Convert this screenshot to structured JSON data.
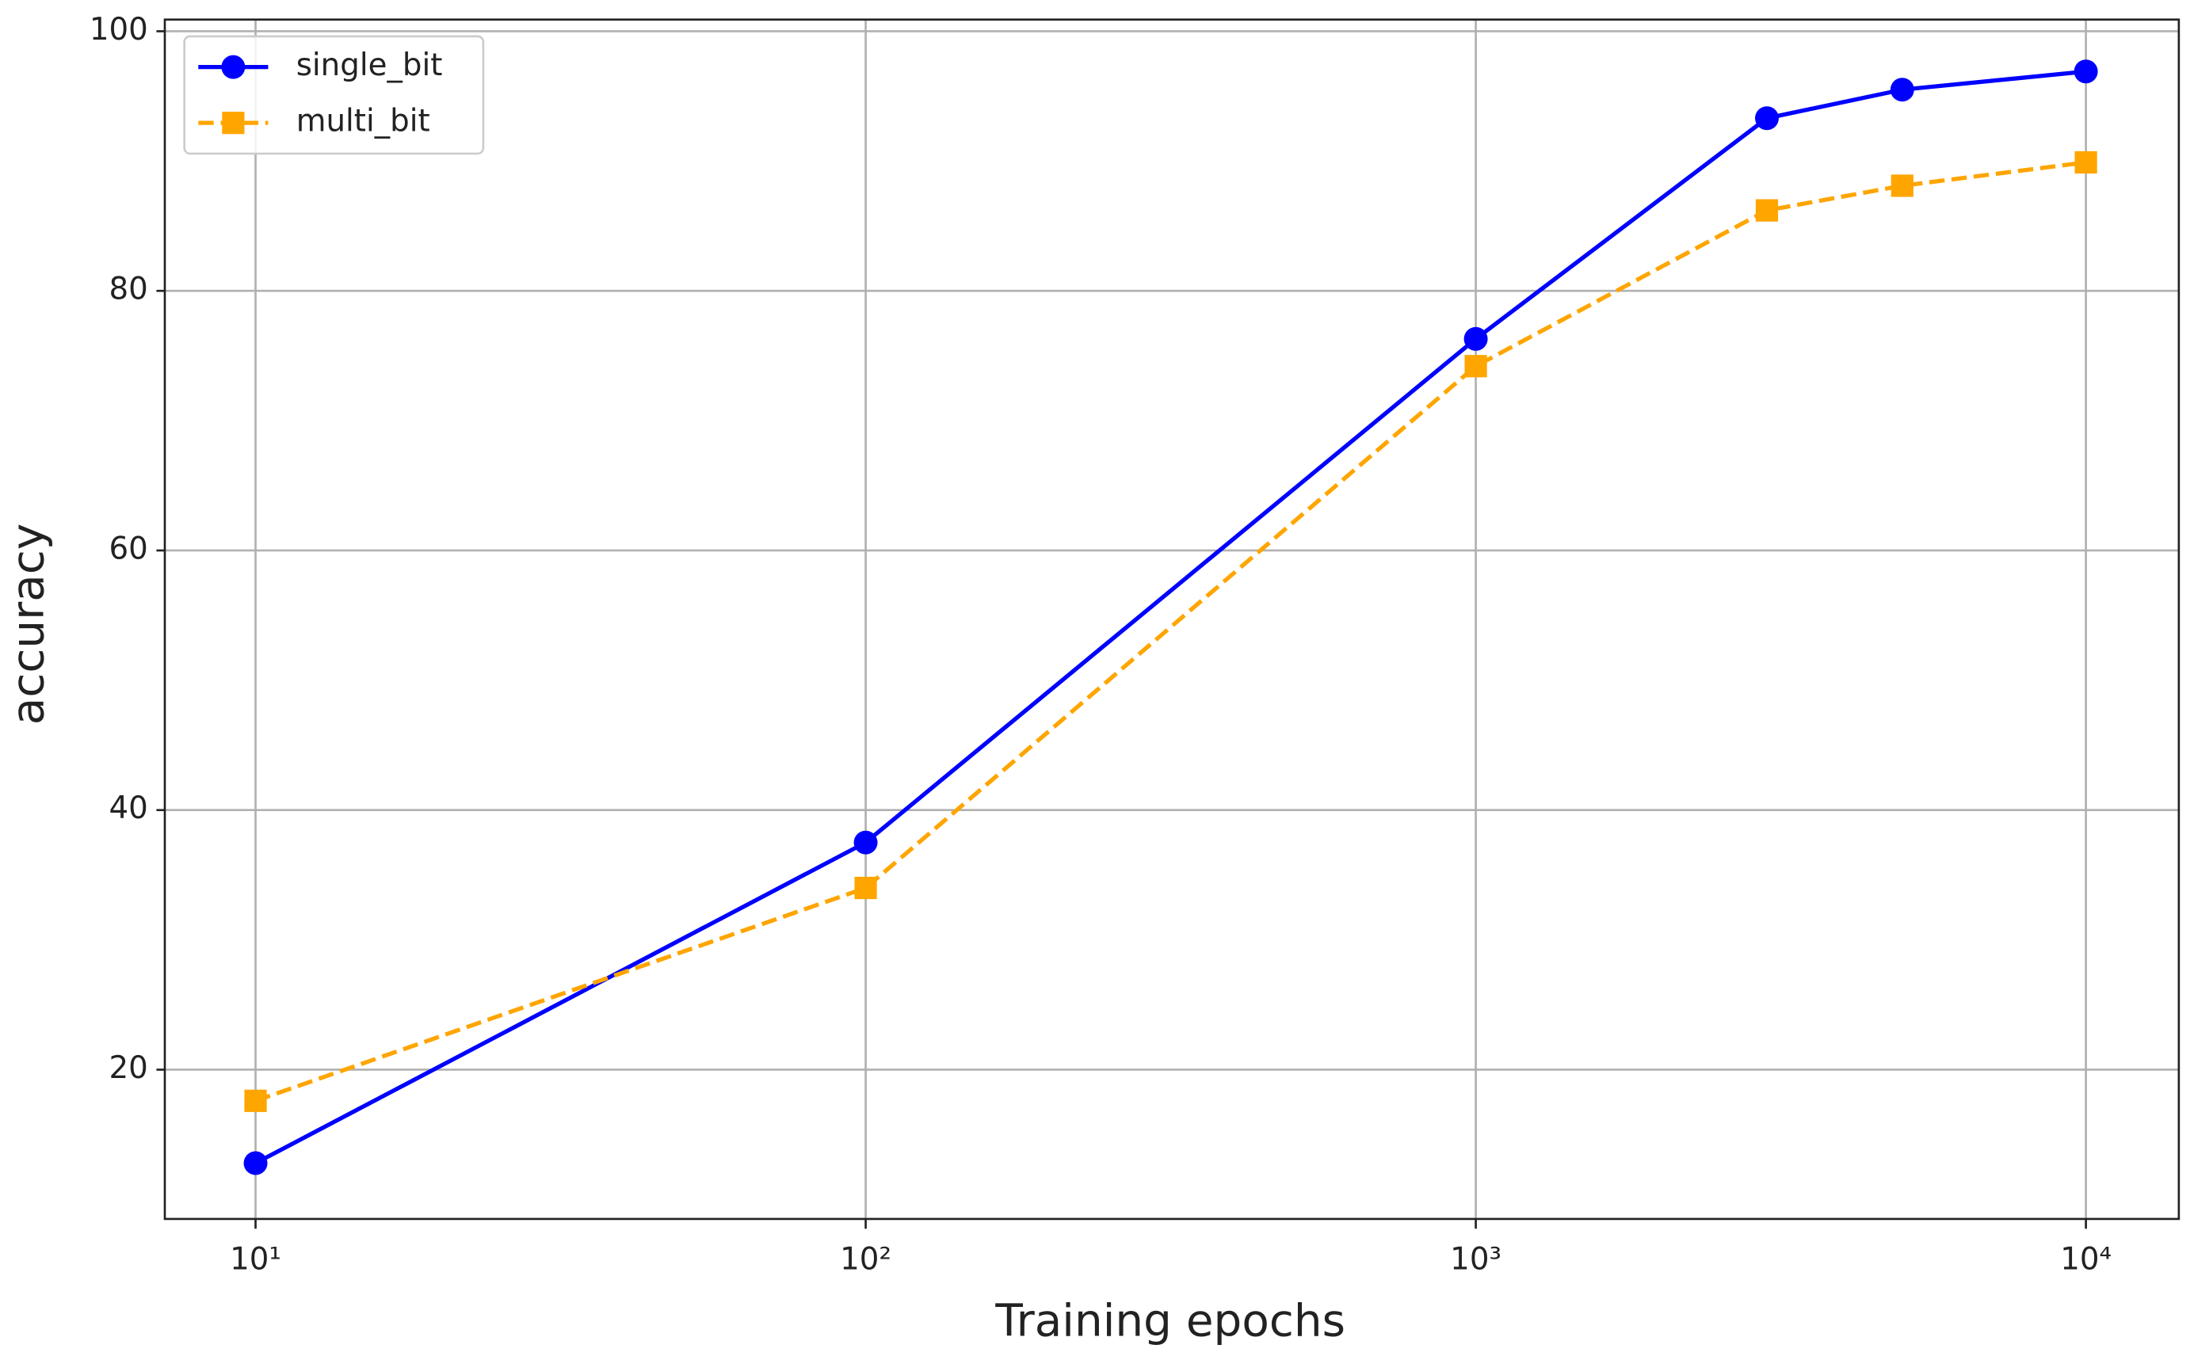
{
  "chart_data": {
    "type": "line",
    "xlabel": "Training epochs",
    "ylabel": "accuracy",
    "x": [
      10,
      100,
      1000,
      3000,
      5000,
      10000
    ],
    "series": [
      {
        "name": "single_bit",
        "color": "#0000ff",
        "marker": "circle",
        "dash": "solid",
        "values": [
          12.8,
          37.5,
          76.3,
          93.3,
          95.5,
          96.9
        ]
      },
      {
        "name": "multi_bit",
        "color": "#ffa500",
        "marker": "square",
        "dash": "dashed",
        "values": [
          17.6,
          34.0,
          74.2,
          86.2,
          88.1,
          89.9
        ]
      }
    ],
    "xscale": "log",
    "xlim": [
      7.1,
      14200
    ],
    "xticks": [
      {
        "value": 10,
        "label": "10¹"
      },
      {
        "value": 100,
        "label": "10²"
      },
      {
        "value": 1000,
        "label": "10³"
      },
      {
        "value": 10000,
        "label": "10⁴"
      }
    ],
    "ylim": [
      8.5,
      100.9
    ],
    "yticks": [
      20,
      40,
      60,
      80,
      100
    ],
    "grid": true,
    "legend": "upper left"
  }
}
